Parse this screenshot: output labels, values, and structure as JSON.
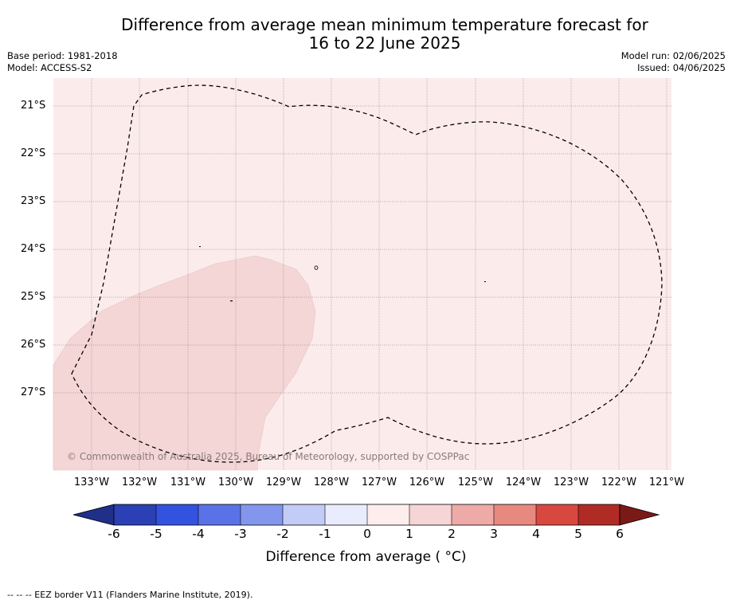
{
  "title": {
    "line1": "Difference from average mean minimum temperature forecast for",
    "line2": "16 to 22 June 2025"
  },
  "meta": {
    "base_period": "Base period: 1981-2018",
    "model": "Model: ACCESS-S2",
    "model_run": "Model run: 02/06/2025",
    "issued": "Issued: 04/06/2025"
  },
  "map": {
    "copyright": "© Commonwealth of Australia 2025, Bureau of Meteorology, supported by COSPPac",
    "latitude_labels": [
      "21°S",
      "22°S",
      "23°S",
      "24°S",
      "25°S",
      "26°S",
      "27°S"
    ],
    "longitude_labels": [
      "133°W",
      "132°W",
      "131°W",
      "130°W",
      "129°W",
      "128°W",
      "127°W",
      "126°W",
      "125°W",
      "124°W",
      "123°W",
      "122°W",
      "121°W"
    ],
    "background_fill_class": "0 to 1",
    "southwest_region_fill_class": "1 to 2",
    "colors": {
      "ocean_0_1": "#fbeceb",
      "region_1_2": "#f4d6d6",
      "graticule": "#7a5f7a",
      "eez_line": "#000000"
    }
  },
  "colorbar": {
    "title": "Difference from average ( °C)",
    "tick_labels": [
      "-6",
      "-5",
      "-4",
      "-3",
      "-2",
      "-1",
      "0",
      "1",
      "2",
      "3",
      "4",
      "5",
      "6"
    ],
    "colors": [
      "#1f2f8a",
      "#2a40b4",
      "#3352e0",
      "#5a72e8",
      "#8396ee",
      "#c3cbf7",
      "#e9ecfc",
      "#fdeeed",
      "#f5d5d5",
      "#edaaa6",
      "#e88980",
      "#d9483f",
      "#b02b24",
      "#7a1a17"
    ]
  },
  "footer": {
    "legend_text": "--  --  -- EEZ border V11 (Flanders Marine Institute, 2019)."
  }
}
